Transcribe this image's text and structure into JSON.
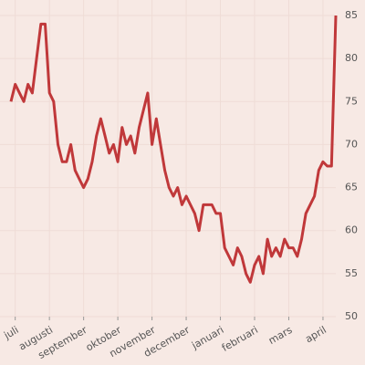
{
  "chart_data": {
    "type": "line",
    "categories": [
      null,
      "juli",
      null,
      null,
      null,
      null,
      null,
      null,
      null,
      "augusti",
      null,
      null,
      null,
      null,
      null,
      null,
      null,
      "september",
      null,
      null,
      null,
      null,
      null,
      null,
      null,
      "oktober",
      null,
      null,
      null,
      null,
      null,
      null,
      null,
      "november",
      null,
      null,
      null,
      null,
      null,
      null,
      null,
      "december",
      null,
      null,
      null,
      null,
      null,
      null,
      null,
      "januari",
      null,
      null,
      null,
      null,
      null,
      null,
      null,
      "februari",
      null,
      null,
      null,
      null,
      null,
      null,
      null,
      "mars",
      null,
      null,
      null,
      null,
      null,
      null,
      null,
      "april",
      null,
      null,
      null
    ],
    "series": [
      {
        "color": "#c0383a",
        "values": [
          75,
          77,
          76,
          75,
          77,
          76,
          80,
          84,
          84,
          76,
          75,
          70,
          68,
          68,
          70,
          67,
          66,
          65,
          66,
          68,
          71,
          73,
          71,
          69,
          70,
          68,
          72,
          70,
          71,
          69,
          72,
          74,
          76,
          70,
          73,
          70,
          67,
          65,
          64,
          65,
          63,
          64,
          63,
          62,
          60,
          63,
          63,
          63,
          62,
          62,
          58,
          57,
          56,
          58,
          57,
          55,
          54,
          56,
          57,
          55,
          59,
          57,
          58,
          57,
          59,
          58,
          58,
          57,
          59,
          62,
          63,
          64,
          67,
          68,
          67.5,
          67.5,
          85
        ]
      }
    ],
    "ylim": [
      50,
      85
    ],
    "yticks": [
      50,
      55,
      60,
      65,
      70,
      75,
      80,
      85
    ],
    "grid": true
  }
}
